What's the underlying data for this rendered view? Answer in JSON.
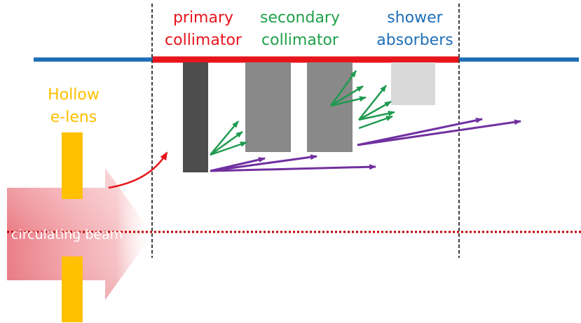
{
  "labels": {
    "primary_collimator": [
      "primary",
      "collimator"
    ],
    "secondary_collimator": [
      "secondary",
      "collimator"
    ],
    "shower_absorbers": [
      "shower",
      "absorbers"
    ],
    "hollow_elens": [
      "Hollow",
      "e-lens"
    ],
    "circulating_beam": "circulating beam"
  },
  "colors": {
    "primary": "#e8141c",
    "secondary": "#1fa04a",
    "shower": "#1f6fb8",
    "elens": "#ffc000",
    "halo_arrow": "#7030a0",
    "shower_arrow": "#1f9a50",
    "beam_fill": "#e87070",
    "beamline": "#1f6fb8",
    "dotted_axis": "#c00000",
    "boundary": "#404040"
  }
}
